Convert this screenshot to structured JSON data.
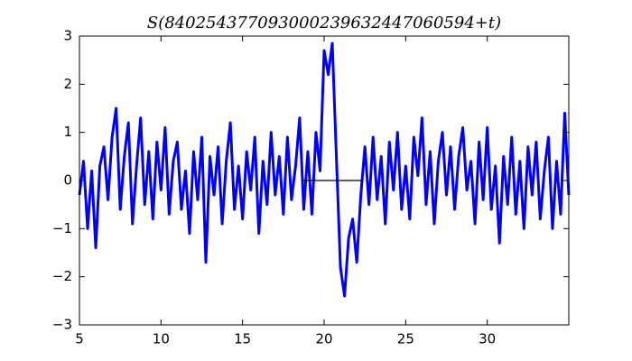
{
  "chart_data": {
    "type": "line",
    "title": "S(840254377093000239632447060594+t)",
    "xlim": [
      5,
      35
    ],
    "ylim": [
      -3,
      3
    ],
    "xticks": [
      5,
      10,
      15,
      20,
      25,
      30
    ],
    "yticks": [
      {
        "value": -3,
        "label": "−3"
      },
      {
        "value": -2,
        "label": "−2"
      },
      {
        "value": -1,
        "label": "−1"
      },
      0,
      1,
      2,
      3
    ],
    "series": [
      {
        "color": "#0000ff",
        "x": [
          5,
          5.25,
          5.5,
          5.75,
          6,
          6.25,
          6.5,
          6.75,
          7,
          7.25,
          7.5,
          7.75,
          8,
          8.25,
          8.5,
          8.75,
          9,
          9.25,
          9.5,
          9.75,
          10,
          10.25,
          10.5,
          10.75,
          11,
          11.25,
          11.5,
          11.75,
          12,
          12.25,
          12.5,
          12.75,
          13,
          13.25,
          13.5,
          13.75,
          14,
          14.25,
          14.5,
          14.75,
          15,
          15.25,
          15.5,
          15.75,
          16,
          16.25,
          16.5,
          16.75,
          17,
          17.25,
          17.5,
          17.75,
          18,
          18.25,
          18.5,
          18.75,
          19,
          19.25,
          19.5,
          19.75,
          20,
          20.25,
          20.5,
          20.75,
          21,
          21.25,
          21.5,
          21.75,
          22,
          22.25,
          22.5,
          22.75,
          23,
          23.25,
          23.5,
          23.75,
          24,
          24.25,
          24.5,
          24.75,
          25,
          25.25,
          25.5,
          25.75,
          26,
          26.25,
          26.5,
          26.75,
          27,
          27.25,
          27.5,
          27.75,
          28,
          28.25,
          28.5,
          28.75,
          29,
          29.25,
          29.5,
          29.75,
          30,
          30.25,
          30.5,
          30.75,
          31,
          31.25,
          31.5,
          31.75,
          32,
          32.25,
          32.5,
          32.75,
          33,
          33.25,
          33.5,
          33.75,
          34,
          34.25,
          34.5,
          34.75,
          35
        ],
        "values": [
          -0.3,
          0.4,
          -1.0,
          0.2,
          -1.4,
          0.3,
          0.7,
          -0.4,
          0.9,
          1.5,
          -0.6,
          0.5,
          1.2,
          -0.9,
          0.3,
          1.3,
          -0.5,
          0.6,
          -0.8,
          0.8,
          -0.2,
          1.1,
          -0.7,
          0.4,
          0.8,
          -0.6,
          0.2,
          -1.1,
          0.6,
          -0.4,
          0.9,
          -1.7,
          0.5,
          -0.3,
          0.7,
          -0.9,
          0.4,
          1.2,
          -0.6,
          0.3,
          -0.8,
          0.6,
          -0.2,
          0.9,
          -1.1,
          0.4,
          -0.5,
          1.0,
          -0.3,
          0.5,
          -0.7,
          0.9,
          -0.4,
          0.3,
          1.3,
          -0.6,
          0.6,
          -0.7,
          1.0,
          0.2,
          2.7,
          2.2,
          2.85,
          0.5,
          -1.8,
          -2.4,
          -1.2,
          -0.8,
          -1.7,
          -0.3,
          0.7,
          -0.5,
          0.9,
          -0.4,
          0.5,
          -0.9,
          0.8,
          -0.2,
          1.0,
          -0.6,
          0.3,
          -0.8,
          0.9,
          0.1,
          1.3,
          -0.5,
          0.6,
          -0.9,
          0.4,
          1.0,
          -0.3,
          0.7,
          -0.6,
          0.5,
          1.1,
          -0.2,
          0.4,
          -0.9,
          0.8,
          -0.4,
          1.1,
          -0.6,
          0.3,
          -1.3,
          0.5,
          -0.5,
          0.9,
          -0.7,
          0.4,
          -1.0,
          0.7,
          -0.3,
          0.8,
          -0.8,
          0.2,
          0.9,
          -1.0,
          0.4,
          -0.7,
          1.4,
          -0.3
        ]
      },
      {
        "color": "#000000",
        "x": [
          18.7,
          22.3
        ],
        "values": [
          0,
          0
        ]
      }
    ]
  }
}
